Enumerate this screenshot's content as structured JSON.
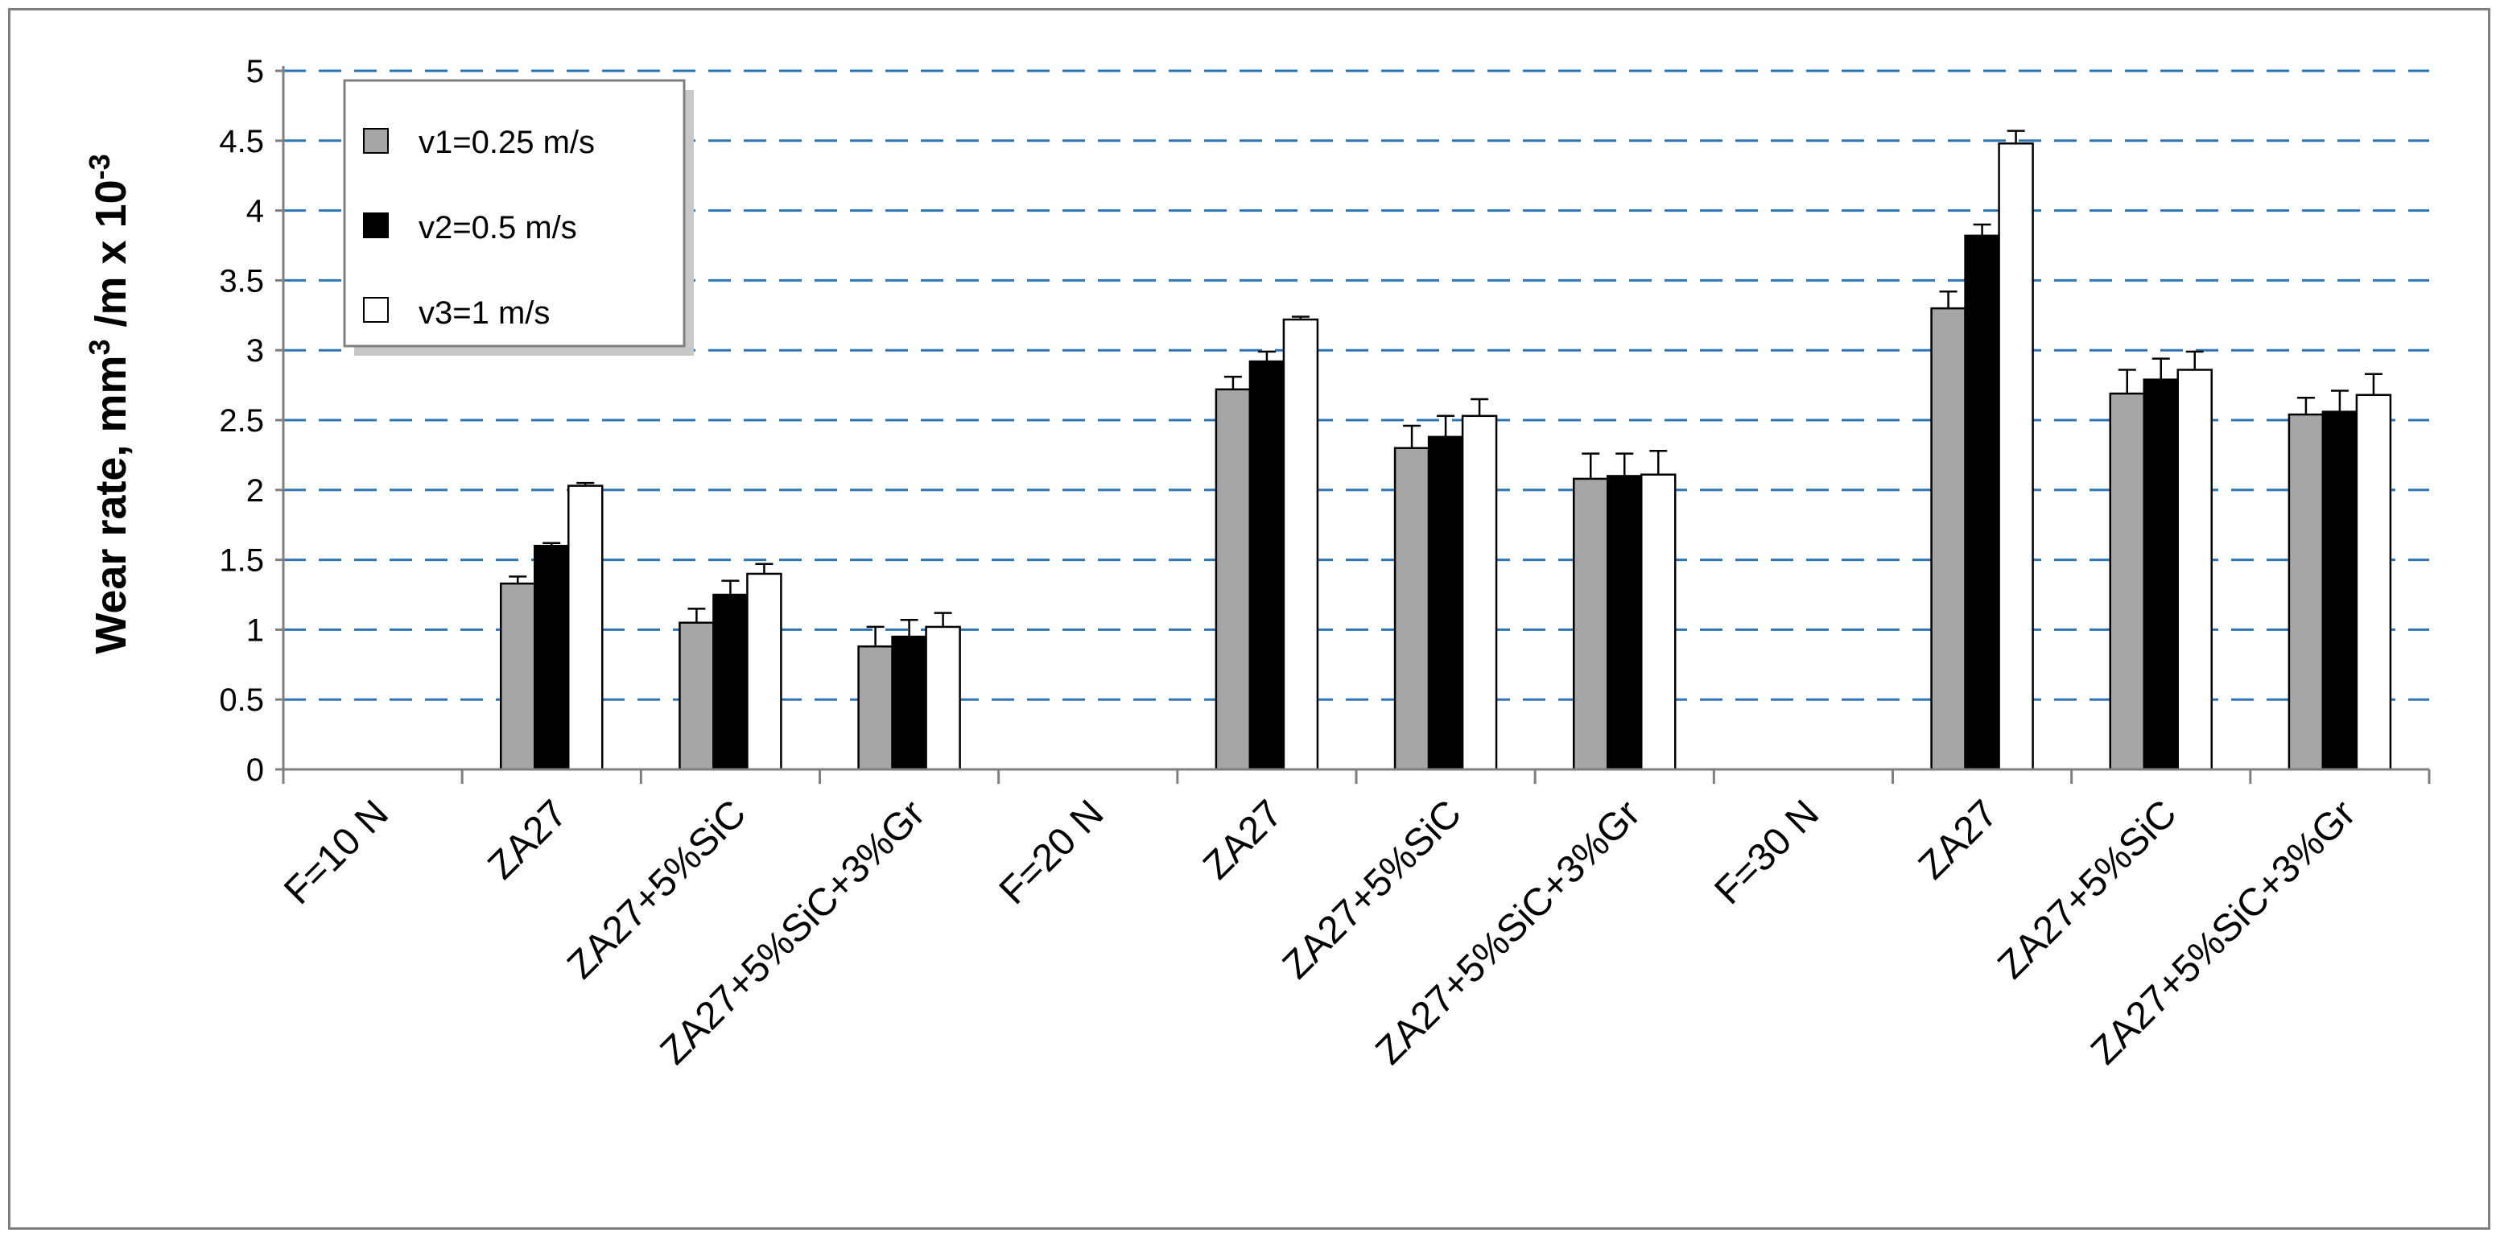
{
  "chart_data": {
    "type": "bar",
    "title": "",
    "xlabel": "",
    "ylabel": {
      "prefix": "Wear rate,  mm",
      "sup1": "3",
      "middle": " /m x 10",
      "sup2": "-3"
    },
    "ylim": [
      0,
      5
    ],
    "yticks": [
      "0",
      "0.5",
      "1",
      "1.5",
      "2",
      "2.5",
      "3",
      "3.5",
      "4",
      "4.5",
      "5"
    ],
    "grid": "horizontal dashed",
    "legend_position": "top-left",
    "categories": [
      "F=10 N",
      "ZA27",
      "ZA27+5%SiC",
      "ZA27+5%SiC+3%Gr",
      "F=20 N",
      "ZA27",
      "ZA27+5%SiC",
      "ZA27+5%SiC+3%Gr",
      "F=30 N",
      "ZA27",
      "ZA27+5%SiC",
      "ZA27+5%SiC+3%Gr"
    ],
    "series": [
      {
        "name": "v1=0.25 m/s",
        "color": "#a6a6a6",
        "values": [
          null,
          1.33,
          1.05,
          0.88,
          null,
          2.72,
          2.3,
          2.08,
          null,
          3.3,
          2.69,
          2.54
        ],
        "errors": [
          null,
          0.05,
          0.1,
          0.14,
          null,
          0.09,
          0.16,
          0.18,
          null,
          0.12,
          0.17,
          0.12
        ]
      },
      {
        "name": "v2=0.5 m/s",
        "color": "#000000",
        "values": [
          null,
          1.6,
          1.25,
          0.95,
          null,
          2.92,
          2.38,
          2.1,
          null,
          3.82,
          2.79,
          2.56
        ],
        "errors": [
          null,
          0.02,
          0.1,
          0.12,
          null,
          0.07,
          0.15,
          0.16,
          null,
          0.08,
          0.15,
          0.15
        ]
      },
      {
        "name": "v3=1 m/s",
        "color": "#ffffff",
        "values": [
          null,
          2.03,
          1.4,
          1.02,
          null,
          3.22,
          2.53,
          2.11,
          null,
          4.48,
          2.86,
          2.68
        ],
        "errors": [
          null,
          0.02,
          0.07,
          0.1,
          null,
          0.02,
          0.12,
          0.17,
          null,
          0.09,
          0.13,
          0.15
        ]
      }
    ]
  }
}
